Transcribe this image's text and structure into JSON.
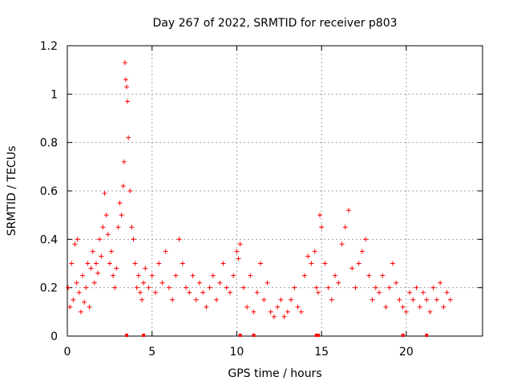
{
  "chart_data": {
    "type": "scatter",
    "title": "Day 267 of 2022, SRMTID for receiver p803",
    "xlabel": "GPS time / hours",
    "ylabel": "SRMTID / TECUs",
    "xlim": [
      0,
      24.5
    ],
    "ylim": [
      0,
      1.2
    ],
    "xticks": [
      0,
      5,
      10,
      15,
      20
    ],
    "xtick_labels": [
      "0",
      "5",
      "10",
      "15",
      "20"
    ],
    "yticks": [
      0,
      0.2,
      0.4,
      0.6,
      0.8,
      1.0,
      1.2
    ],
    "ytick_labels": [
      "0",
      "0.2",
      "0.4",
      "0.6",
      "0.8",
      "1",
      "1.2"
    ],
    "grid": true,
    "marker": "+",
    "marker_color": "#ff0000",
    "series": [
      {
        "name": "SRMTID",
        "x": [
          0.05,
          0.15,
          0.25,
          0.35,
          0.45,
          0.55,
          0.6,
          0.7,
          0.8,
          0.9,
          1.0,
          1.1,
          1.2,
          1.3,
          1.4,
          1.5,
          1.6,
          1.7,
          1.8,
          1.9,
          2.0,
          2.1,
          2.2,
          2.3,
          2.4,
          2.5,
          2.6,
          2.7,
          2.8,
          2.9,
          3.0,
          3.1,
          3.2,
          3.3,
          3.35,
          3.4,
          3.45,
          3.5,
          3.55,
          3.6,
          3.7,
          3.8,
          3.9,
          4.0,
          4.1,
          4.2,
          4.3,
          4.4,
          4.5,
          4.6,
          4.8,
          5.0,
          5.2,
          5.4,
          5.6,
          5.8,
          6.0,
          6.2,
          6.4,
          6.6,
          6.8,
          7.0,
          7.2,
          7.4,
          7.6,
          7.8,
          8.0,
          8.2,
          8.4,
          8.6,
          8.8,
          9.0,
          9.2,
          9.4,
          9.6,
          9.8,
          10.0,
          10.1,
          10.2,
          10.4,
          10.6,
          10.8,
          11.0,
          11.2,
          11.4,
          11.6,
          11.8,
          12.0,
          12.2,
          12.4,
          12.6,
          12.8,
          13.0,
          13.2,
          13.4,
          13.6,
          13.8,
          14.0,
          14.2,
          14.4,
          14.6,
          14.7,
          14.8,
          14.9,
          15.0,
          15.2,
          15.4,
          15.6,
          15.8,
          16.0,
          16.2,
          16.4,
          16.6,
          16.8,
          17.0,
          17.2,
          17.4,
          17.6,
          17.8,
          18.0,
          18.2,
          18.4,
          18.6,
          18.8,
          19.0,
          19.2,
          19.4,
          19.6,
          19.8,
          20.0,
          20.2,
          20.4,
          20.6,
          20.8,
          21.0,
          21.2,
          21.4,
          21.6,
          21.8,
          22.0,
          22.2,
          22.4,
          22.6
        ],
        "y": [
          0.2,
          0.12,
          0.3,
          0.15,
          0.38,
          0.22,
          0.4,
          0.18,
          0.1,
          0.25,
          0.14,
          0.2,
          0.3,
          0.12,
          0.28,
          0.35,
          0.22,
          0.3,
          0.26,
          0.4,
          0.33,
          0.45,
          0.59,
          0.5,
          0.42,
          0.3,
          0.35,
          0.25,
          0.2,
          0.28,
          0.45,
          0.55,
          0.5,
          0.62,
          0.72,
          1.13,
          1.06,
          1.03,
          0.97,
          0.82,
          0.6,
          0.45,
          0.4,
          0.3,
          0.2,
          0.25,
          0.18,
          0.15,
          0.22,
          0.28,
          0.2,
          0.25,
          0.18,
          0.3,
          0.22,
          0.35,
          0.2,
          0.15,
          0.25,
          0.4,
          0.3,
          0.2,
          0.18,
          0.25,
          0.15,
          0.22,
          0.18,
          0.12,
          0.2,
          0.25,
          0.15,
          0.22,
          0.3,
          0.2,
          0.18,
          0.25,
          0.35,
          0.32,
          0.38,
          0.2,
          0.12,
          0.25,
          0.1,
          0.18,
          0.3,
          0.15,
          0.22,
          0.1,
          0.08,
          0.12,
          0.15,
          0.08,
          0.1,
          0.15,
          0.2,
          0.12,
          0.1,
          0.25,
          0.33,
          0.3,
          0.35,
          0.2,
          0.18,
          0.5,
          0.45,
          0.3,
          0.2,
          0.15,
          0.25,
          0.22,
          0.38,
          0.45,
          0.52,
          0.28,
          0.2,
          0.3,
          0.35,
          0.4,
          0.25,
          0.15,
          0.2,
          0.18,
          0.25,
          0.12,
          0.2,
          0.3,
          0.22,
          0.15,
          0.12,
          0.1,
          0.18,
          0.15,
          0.2,
          0.12,
          0.18,
          0.15,
          0.1,
          0.2,
          0.15,
          0.22,
          0.12,
          0.18,
          0.15
        ]
      }
    ],
    "baseline_markers_x": [
      3.5,
      4.5,
      10.2,
      11.0,
      14.7,
      14.8,
      19.8,
      21.2
    ]
  }
}
